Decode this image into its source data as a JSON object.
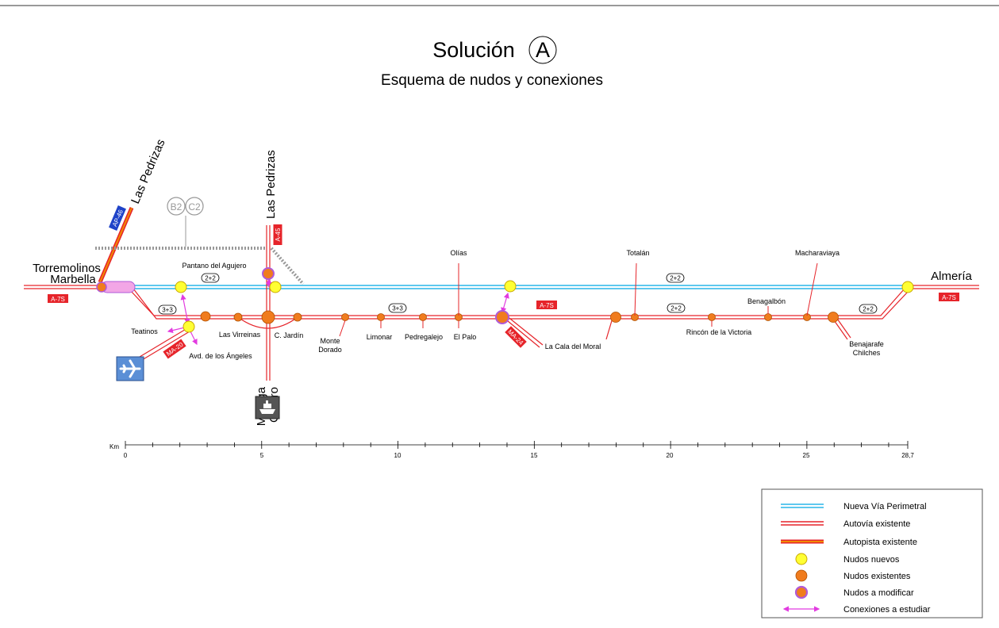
{
  "title": "Solución",
  "title_badge": "A",
  "subtitle": "Esquema de nudos y conexiones",
  "endpoints": {
    "west": [
      "Torremolinos",
      "Marbella"
    ],
    "east": "Almería"
  },
  "roads": {
    "ap46": "AP-46",
    "a45": "A-45",
    "a7s": "A-7S",
    "ma20": "MA-20",
    "ma24": "MA-24",
    "pedrizas": "Las Pedrizas"
  },
  "alt_badges": [
    "B2",
    "C2"
  ],
  "lanes": [
    "2+2",
    "3+3"
  ],
  "nodes": {
    "pantano": "Pantano del Agujero",
    "olias": "Olías",
    "totalan": "Totalán",
    "macharaviaya": "Macharaviaya",
    "teatinos": "Teatinos",
    "avd_angeles": "Avd. de los Ángeles",
    "virreinas": "Las Virreinas",
    "jardin": "C. Jardín",
    "monte_dorado": [
      "Monte",
      "Dorado"
    ],
    "limonar": "Limonar",
    "pedregalejo": "Pedregalejo",
    "el_palo": "El Palo",
    "cala_moral": "La Cala del Moral",
    "rincon": "Rincón de la Victoria",
    "benagalbon": "Benagalbón",
    "benajarafe": [
      "Benajarafe",
      "Chilches"
    ],
    "malaga": [
      "Málaga",
      "Centro"
    ]
  },
  "icons": [
    "airplane-icon",
    "ship-icon"
  ],
  "ruler": {
    "unit": "Km",
    "labels": [
      "0",
      "5",
      "10",
      "15",
      "20",
      "25",
      "28,7"
    ]
  },
  "legend": [
    {
      "label": "Nueva Vía Perimetral",
      "symbol": "double-cyan-line"
    },
    {
      "label": "Autovía existente",
      "symbol": "double-red-line"
    },
    {
      "label": "Autopista existente",
      "symbol": "orange-red-line"
    },
    {
      "label": "Nudos nuevos",
      "symbol": "yellow-circle"
    },
    {
      "label": "Nudos existentes",
      "symbol": "orange-circle"
    },
    {
      "label": "Nudos a modificar",
      "symbol": "purple-ring-circle"
    },
    {
      "label": "Conexiones a estudiar",
      "symbol": "magenta-arrow"
    }
  ],
  "colors": {
    "perimetral": "#29b6e8",
    "autovia": "#e6242a",
    "autopista": "#f08a00",
    "node_new": "#ffff33",
    "node_existing": "#f07c1e",
    "node_modify": "#b05ad8",
    "connection": "#e23be0",
    "shield": "#e6242a",
    "shield_blue": "#1f43c8"
  }
}
